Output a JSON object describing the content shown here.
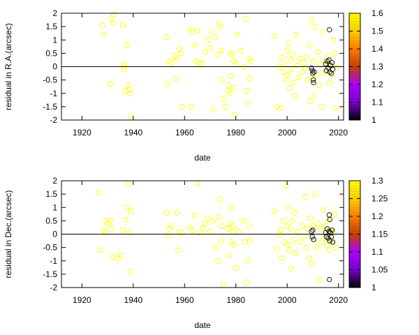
{
  "chart_data": [
    {
      "type": "scatter",
      "xlabel": "date",
      "ylabel": "residual in R.A.(arcsec)",
      "xlim": [
        1912,
        2022
      ],
      "ylim": [
        -2,
        2
      ],
      "xticks": [
        1920,
        1940,
        1960,
        1980,
        2000,
        2020
      ],
      "yticks": [
        -2,
        -1.5,
        -1,
        -0.5,
        0,
        0.5,
        1,
        1.5,
        2
      ],
      "colorbar": {
        "range": [
          1,
          1.6
        ],
        "ticks": [
          1,
          1.1,
          1.2,
          1.3,
          1.4,
          1.5,
          1.6
        ],
        "palette": [
          "#000000",
          "#7a00d6",
          "#b000ff",
          "#c84000",
          "#ff8000",
          "#ffd000",
          "#ffff00"
        ]
      },
      "marker": "open-circle",
      "grid": false,
      "zero_line": true,
      "points": [
        [
          1928.0,
          1.55
        ],
        [
          1928.5,
          1.2
        ],
        [
          1931.0,
          -0.65
        ],
        [
          1931.5,
          1.8
        ],
        [
          1932.0,
          1.65
        ],
        [
          1932.5,
          1.95
        ],
        [
          1936.0,
          1.55
        ],
        [
          1936.2,
          0.1
        ],
        [
          1936.4,
          0.0
        ],
        [
          1936.6,
          -0.1
        ],
        [
          1937.0,
          -0.9
        ],
        [
          1937.5,
          0.8
        ],
        [
          1938.0,
          -0.7
        ],
        [
          1938.5,
          -0.85
        ],
        [
          1938.7,
          -1.0
        ],
        [
          1939.0,
          -1.9
        ],
        [
          1953.0,
          1.1
        ],
        [
          1953.5,
          -0.65
        ],
        [
          1954.0,
          0.2
        ],
        [
          1955.0,
          0.15
        ],
        [
          1956.0,
          0.4
        ],
        [
          1956.5,
          -0.45
        ],
        [
          1957.0,
          0.3
        ],
        [
          1958.0,
          0.65
        ],
        [
          1958.5,
          0.5
        ],
        [
          1959.0,
          -1.5
        ],
        [
          1962.0,
          1.4
        ],
        [
          1962.5,
          -1.5
        ],
        [
          1963.0,
          1.3
        ],
        [
          1964.0,
          0.8
        ],
        [
          1964.5,
          0.2
        ],
        [
          1965.0,
          1.35
        ],
        [
          1966.0,
          0.15
        ],
        [
          1967.0,
          0.1
        ],
        [
          1968.0,
          0.55
        ],
        [
          1969.0,
          1.0
        ],
        [
          1970.0,
          0.7
        ],
        [
          1970.5,
          1.3
        ],
        [
          1971.0,
          -1.6
        ],
        [
          1972.0,
          1.1
        ],
        [
          1973.0,
          0.45
        ],
        [
          1973.5,
          1.6
        ],
        [
          1974.0,
          1.5
        ],
        [
          1974.3,
          0.6
        ],
        [
          1974.6,
          -0.5
        ],
        [
          1975.0,
          -1.2
        ],
        [
          1976.0,
          -1.5
        ],
        [
          1977.0,
          -0.9
        ],
        [
          1977.3,
          -0.7
        ],
        [
          1977.6,
          -1.0
        ],
        [
          1978.0,
          0.45
        ],
        [
          1978.3,
          -0.35
        ],
        [
          1978.6,
          0.5
        ],
        [
          1979.0,
          -0.8
        ],
        [
          1979.3,
          0.2
        ],
        [
          1979.6,
          -1.8
        ],
        [
          1980.0,
          0.1
        ],
        [
          1980.5,
          1.2
        ],
        [
          1982.0,
          0.6
        ],
        [
          1983.0,
          0.0
        ],
        [
          1984.0,
          1.8
        ],
        [
          1984.3,
          -0.9
        ],
        [
          1984.6,
          -1.35
        ],
        [
          1985.0,
          0.3
        ],
        [
          1985.3,
          -0.45
        ],
        [
          1986.0,
          0.2
        ],
        [
          1995.0,
          1.15
        ],
        [
          1996.0,
          -1.5
        ],
        [
          1997.0,
          0.0
        ],
        [
          1997.5,
          -1.55
        ],
        [
          1998.0,
          0.35
        ],
        [
          1998.5,
          -0.2
        ],
        [
          1999.0,
          0.1
        ],
        [
          1999.5,
          -0.5
        ],
        [
          2000.0,
          0.6
        ],
        [
          2000.3,
          -0.3
        ],
        [
          2000.6,
          0.9
        ],
        [
          2001.0,
          -0.8
        ],
        [
          2001.3,
          0.25
        ],
        [
          2001.6,
          -0.1
        ],
        [
          2002.0,
          0.45
        ],
        [
          2002.5,
          -0.6
        ],
        [
          2003.0,
          -1.1
        ],
        [
          2003.5,
          1.2
        ],
        [
          2004.0,
          0.05
        ],
        [
          2004.5,
          -0.4
        ],
        [
          2005.0,
          0.3
        ],
        [
          2006.0,
          -0.2
        ],
        [
          2006.5,
          0.15
        ],
        [
          2007.0,
          -0.05
        ],
        [
          2007.5,
          0.35
        ],
        [
          2008.0,
          -0.5
        ],
        [
          2008.5,
          0.8
        ],
        [
          2009.0,
          -1.3
        ],
        [
          2009.5,
          1.75
        ],
        [
          2010.0,
          -0.45
        ],
        [
          2010.3,
          0.2
        ],
        [
          2010.6,
          -1.1
        ],
        [
          2011.0,
          1.5
        ],
        [
          2011.5,
          -0.3
        ],
        [
          2012.0,
          0.55
        ],
        [
          2012.5,
          -0.7
        ],
        [
          2013.0,
          0.1
        ],
        [
          2013.5,
          -1.5
        ],
        [
          2014.0,
          1.3
        ],
        [
          2014.5,
          -0.25
        ],
        [
          2015.0,
          0.2
        ],
        [
          2015.5,
          -0.1
        ],
        [
          2016.0,
          0.4
        ],
        [
          2016.5,
          -0.6
        ],
        [
          2017.0,
          0.05
        ],
        [
          2017.5,
          -0.3
        ],
        [
          2018.0,
          1.0
        ],
        [
          2018.5,
          0.5
        ],
        [
          2019.0,
          -1.55
        ],
        [
          2019.3,
          0.0
        ]
      ],
      "dark_points": [
        [
          2009.5,
          -0.05
        ],
        [
          2009.8,
          -0.15
        ],
        [
          2010.0,
          -0.25
        ],
        [
          2010.2,
          -0.5
        ],
        [
          2010.3,
          -0.6
        ],
        [
          2010.5,
          -0.2
        ],
        [
          2015.0,
          0.1
        ],
        [
          2015.3,
          -0.15
        ],
        [
          2015.6,
          0.2
        ],
        [
          2016.0,
          -0.05
        ],
        [
          2016.3,
          0.25
        ],
        [
          2016.6,
          -0.2
        ],
        [
          2016.9,
          0.05
        ],
        [
          2017.2,
          -0.25
        ],
        [
          2017.5,
          0.15
        ],
        [
          2017.8,
          -0.1
        ],
        [
          2016.5,
          1.38
        ]
      ]
    },
    {
      "type": "scatter",
      "xlabel": "date",
      "ylabel": "residual in Dec.(arcsec)",
      "xlim": [
        1912,
        2022
      ],
      "ylim": [
        -2,
        2
      ],
      "xticks": [
        1920,
        1940,
        1960,
        1980,
        2000,
        2020
      ],
      "yticks": [
        -2,
        -1.5,
        -1,
        -0.5,
        0,
        0.5,
        1,
        1.5,
        2
      ],
      "colorbar": {
        "range": [
          1,
          1.3
        ],
        "ticks": [
          1,
          1.05,
          1.1,
          1.15,
          1.2,
          1.25,
          1.3
        ],
        "palette": [
          "#000000",
          "#7a00d6",
          "#b000ff",
          "#c84000",
          "#ff8000",
          "#ffd000",
          "#ffff00"
        ]
      },
      "marker": "open-circle",
      "grid": false,
      "zero_line": true,
      "points": [
        [
          1926.5,
          1.55
        ],
        [
          1927.0,
          -0.6
        ],
        [
          1928.5,
          0.15
        ],
        [
          1929.0,
          0.05
        ],
        [
          1929.5,
          0.5
        ],
        [
          1930.0,
          0.4
        ],
        [
          1931.0,
          0.5
        ],
        [
          1931.5,
          0.2
        ],
        [
          1932.0,
          -0.85
        ],
        [
          1934.0,
          -0.9
        ],
        [
          1935.0,
          -0.8
        ],
        [
          1936.0,
          0.15
        ],
        [
          1937.0,
          0.55
        ],
        [
          1937.5,
          1.0
        ],
        [
          1938.0,
          1.9
        ],
        [
          1938.5,
          0.05
        ],
        [
          1938.8,
          -1.4
        ],
        [
          1939.0,
          0.85
        ],
        [
          1953.0,
          0.8
        ],
        [
          1953.5,
          -0.05
        ],
        [
          1954.0,
          0.2
        ],
        [
          1955.0,
          0.3
        ],
        [
          1957.0,
          0.8
        ],
        [
          1957.5,
          -0.6
        ],
        [
          1958.0,
          0.1
        ],
        [
          1959.0,
          0.05
        ],
        [
          1962.0,
          0.25
        ],
        [
          1963.0,
          0.15
        ],
        [
          1964.0,
          0.7
        ],
        [
          1965.0,
          1.9
        ],
        [
          1966.0,
          0.05
        ],
        [
          1967.0,
          0.2
        ],
        [
          1968.0,
          0.4
        ],
        [
          1969.0,
          0.6
        ],
        [
          1970.0,
          0.1
        ],
        [
          1971.0,
          0.5
        ],
        [
          1972.0,
          -0.5
        ],
        [
          1973.0,
          -1.0
        ],
        [
          1973.5,
          0.65
        ],
        [
          1974.0,
          1.3
        ],
        [
          1974.3,
          -0.3
        ],
        [
          1974.6,
          0.3
        ],
        [
          1975.0,
          -1.9
        ],
        [
          1977.0,
          0.2
        ],
        [
          1977.3,
          -0.8
        ],
        [
          1977.6,
          0.4
        ],
        [
          1978.0,
          1.0
        ],
        [
          1978.3,
          -0.3
        ],
        [
          1978.6,
          0.3
        ],
        [
          1979.0,
          0.1
        ],
        [
          1979.3,
          -0.4
        ],
        [
          1980.0,
          -1.25
        ],
        [
          1981.0,
          0.1
        ],
        [
          1983.0,
          0.5
        ],
        [
          1983.5,
          -0.3
        ],
        [
          1984.0,
          -1.8
        ],
        [
          1984.5,
          -1.0
        ],
        [
          1985.0,
          0.3
        ],
        [
          1985.5,
          -0.25
        ],
        [
          1995.0,
          0.85
        ],
        [
          1996.0,
          -0.55
        ],
        [
          1997.0,
          0.0
        ],
        [
          1997.5,
          0.15
        ],
        [
          1998.0,
          -0.9
        ],
        [
          1998.5,
          0.5
        ],
        [
          1999.0,
          -0.3
        ],
        [
          1999.5,
          1.8
        ],
        [
          2000.0,
          0.3
        ],
        [
          2000.3,
          -0.4
        ],
        [
          2000.6,
          1.0
        ],
        [
          2001.0,
          -0.6
        ],
        [
          2001.3,
          0.2
        ],
        [
          2001.6,
          -1.3
        ],
        [
          2002.0,
          0.5
        ],
        [
          2002.5,
          -0.2
        ],
        [
          2003.0,
          0.8
        ],
        [
          2003.5,
          -0.7
        ],
        [
          2004.0,
          0.1
        ],
        [
          2005.0,
          -0.3
        ],
        [
          2006.0,
          0.3
        ],
        [
          2006.5,
          -0.1
        ],
        [
          2007.0,
          1.4
        ],
        [
          2007.5,
          -0.5
        ],
        [
          2008.0,
          0.2
        ],
        [
          2008.5,
          -0.9
        ],
        [
          2009.0,
          0.6
        ],
        [
          2009.5,
          -1.1
        ],
        [
          2010.0,
          0.3
        ],
        [
          2010.5,
          -0.2
        ],
        [
          2011.0,
          1.5
        ],
        [
          2011.5,
          -0.5
        ],
        [
          2012.0,
          0.4
        ],
        [
          2012.5,
          -1.7
        ],
        [
          2013.0,
          0.2
        ],
        [
          2013.5,
          -0.3
        ],
        [
          2014.0,
          0.9
        ],
        [
          2014.5,
          -0.15
        ],
        [
          2015.0,
          0.3
        ],
        [
          2015.5,
          -0.4
        ],
        [
          2016.0,
          0.5
        ],
        [
          2016.5,
          -0.6
        ],
        [
          2017.0,
          0.1
        ],
        [
          2017.5,
          -0.25
        ],
        [
          2018.0,
          0.05
        ],
        [
          2018.5,
          0.75
        ],
        [
          2019.0,
          -0.5
        ]
      ],
      "dark_points": [
        [
          2009.5,
          0.1
        ],
        [
          2009.8,
          -0.1
        ],
        [
          2010.0,
          0.15
        ],
        [
          2010.3,
          -0.2
        ],
        [
          2015.0,
          0.05
        ],
        [
          2015.3,
          -0.1
        ],
        [
          2015.6,
          0.2
        ],
        [
          2016.0,
          -0.15
        ],
        [
          2016.3,
          0.1
        ],
        [
          2016.6,
          -0.25
        ],
        [
          2016.9,
          0.05
        ],
        [
          2017.2,
          -0.1
        ],
        [
          2017.5,
          0.15
        ],
        [
          2017.8,
          -0.3
        ],
        [
          2016.4,
          0.72
        ],
        [
          2016.6,
          0.55
        ],
        [
          2016.5,
          -1.7
        ]
      ]
    }
  ]
}
